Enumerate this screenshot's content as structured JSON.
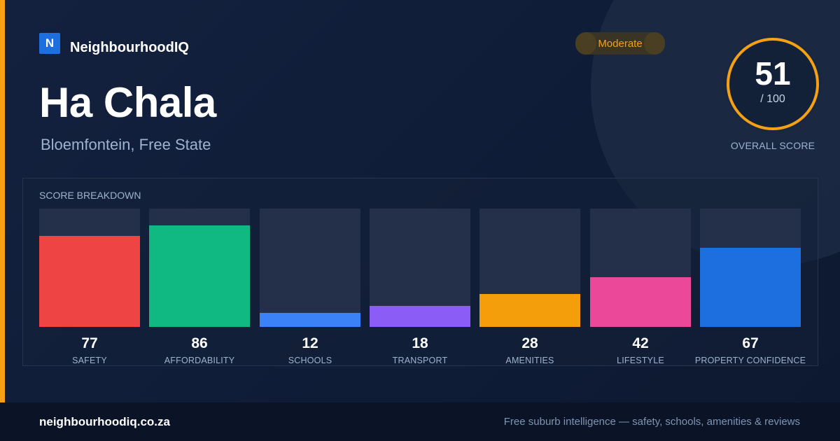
{
  "brand": {
    "logo_letter": "N",
    "name": "NeighbourhoodIQ"
  },
  "suburb": {
    "name": "Ha Chala",
    "location": "Bloemfontein, Free State"
  },
  "rating_badge": {
    "label": "Moderate",
    "color": "#f5a113"
  },
  "overall": {
    "score": "51",
    "max": "/ 100",
    "fraction": 0.51,
    "label": "OVERALL SCORE",
    "ring_color": "#f5a113"
  },
  "breakdown_title": "SCORE BREAKDOWN",
  "chart_data": {
    "type": "bar",
    "categories": [
      "SAFETY",
      "AFFORDABILITY",
      "SCHOOLS",
      "TRANSPORT",
      "AMENITIES",
      "LIFESTYLE",
      "PROPERTY CONFIDENCE"
    ],
    "values": [
      77,
      86,
      12,
      18,
      28,
      42,
      67
    ],
    "value_labels": [
      "77",
      "86",
      "12",
      "18",
      "28",
      "42",
      "67"
    ],
    "colors": [
      "#ef4444",
      "#10b981",
      "#3b82f6",
      "#8b5cf6",
      "#f59e0b",
      "#ec4899",
      "#1d6fe0"
    ],
    "ylim": [
      0,
      100
    ],
    "title": "SCORE BREAKDOWN",
    "xlabel": "",
    "ylabel": ""
  },
  "footer": {
    "domain": "neighbourhoodiq.co.za",
    "tagline": "Free suburb intelligence — safety, schools, amenities & reviews"
  }
}
